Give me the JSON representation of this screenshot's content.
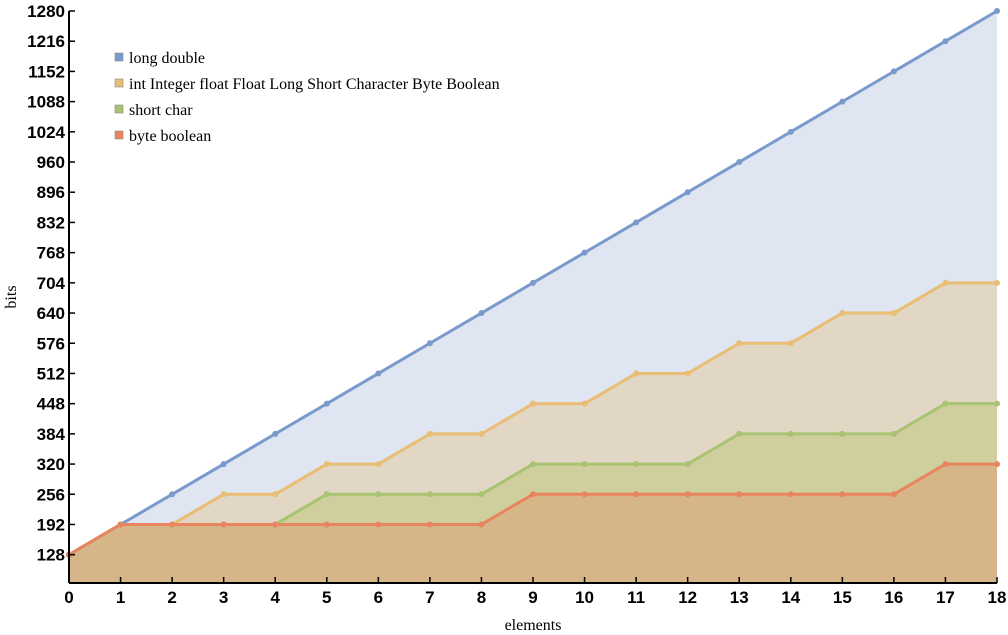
{
  "chart_data": {
    "type": "area",
    "title": "",
    "xlabel": "elements",
    "ylabel": "bits",
    "xlim": [
      0,
      18
    ],
    "ylim": [
      0,
      1280
    ],
    "x": [
      0,
      1,
      2,
      3,
      4,
      5,
      6,
      7,
      8,
      9,
      10,
      11,
      12,
      13,
      14,
      15,
      16,
      17,
      18
    ],
    "x_ticks": [
      "0",
      "1",
      "2",
      "3",
      "4",
      "5",
      "6",
      "7",
      "8",
      "9",
      "10",
      "11",
      "12",
      "13",
      "14",
      "15",
      "16",
      "17",
      "18"
    ],
    "y_ticks": [
      "128",
      "192",
      "256",
      "320",
      "384",
      "448",
      "512",
      "576",
      "640",
      "704",
      "768",
      "832",
      "896",
      "960",
      "1024",
      "1088",
      "1152",
      "1216",
      "1280"
    ],
    "legend_position": "top-left",
    "grid": false,
    "series": [
      {
        "name": "long double",
        "color": "#7a9acc",
        "fill": "#dfe5f1",
        "values": [
          128,
          192,
          256,
          320,
          384,
          448,
          512,
          576,
          640,
          704,
          768,
          832,
          896,
          960,
          1024,
          1088,
          1152,
          1216,
          1280
        ]
      },
      {
        "name": "int Integer float Float Long Short Character Byte Boolean",
        "color": "#e9bd73",
        "fill": "#e2d6c4",
        "values": [
          128,
          192,
          192,
          256,
          256,
          320,
          320,
          384,
          384,
          448,
          448,
          512,
          512,
          576,
          576,
          640,
          640,
          704,
          704
        ]
      },
      {
        "name": "short char",
        "color": "#a8c371",
        "fill": "#cfcf9e",
        "values": [
          128,
          192,
          192,
          192,
          192,
          256,
          256,
          256,
          256,
          320,
          320,
          320,
          320,
          384,
          384,
          384,
          384,
          448,
          448
        ]
      },
      {
        "name": "byte boolean",
        "color": "#e8855f",
        "fill": "#d6b689",
        "values": [
          128,
          192,
          192,
          192,
          192,
          192,
          192,
          192,
          192,
          256,
          256,
          256,
          256,
          256,
          256,
          256,
          256,
          320,
          320
        ]
      }
    ]
  }
}
